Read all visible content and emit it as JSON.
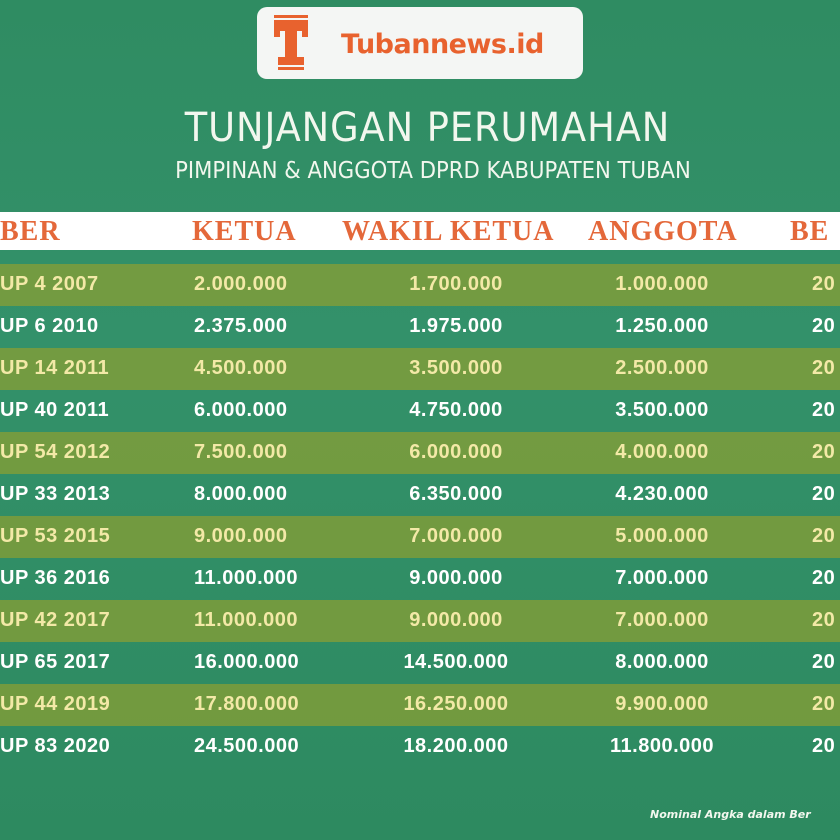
{
  "brand": {
    "name": "Tubannews.id",
    "color": "#e8622e"
  },
  "title": "TUNJANGAN PERUMAHAN",
  "subtitle": "PIMPINAN & ANGGOTA DPRD KABUPATEN TUBAN",
  "table": {
    "headers": [
      "BER",
      "KETUA",
      "WAKIL KETUA",
      "ANGGOTA",
      "BE"
    ],
    "rows": [
      [
        "UP 4 2007",
        "2.000.000",
        "1.700.000",
        "1.000.000",
        "20"
      ],
      [
        "UP 6 2010",
        "2.375.000",
        "1.975.000",
        "1.250.000",
        "20"
      ],
      [
        "UP 14 2011",
        "4.500.000",
        "3.500.000",
        "2.500.000",
        "20"
      ],
      [
        "UP 40 2011",
        "6.000.000",
        "4.750.000",
        "3.500.000",
        "20"
      ],
      [
        "UP 54 2012",
        "7.500.000",
        "6.000.000",
        "4.000.000",
        "20"
      ],
      [
        "UP 33 2013",
        "8.000.000",
        "6.350.000",
        "4.230.000",
        "20"
      ],
      [
        "UP 53 2015",
        "9.000.000",
        "7.000.000",
        "5.000.000",
        "20"
      ],
      [
        "UP 36 2016",
        "11.000.000",
        "9.000.000",
        "7.000.000",
        "20"
      ],
      [
        "UP 42 2017",
        "11.000.000",
        "9.000.000",
        "7.000.000",
        "20"
      ],
      [
        "UP 65 2017",
        "16.000.000",
        "14.500.000",
        "8.000.000",
        "20"
      ],
      [
        "UP 44 2019",
        "17.800.000",
        "16.250.000",
        "9.900.000",
        "20"
      ],
      [
        "UP 83 2020",
        "24.500.000",
        "18.200.000",
        "11.800.000",
        "20"
      ]
    ],
    "colors": {
      "olive_row": "#8ca032",
      "green_row": "#2f8c62",
      "header_text": "#e4683a",
      "olive_text": "#f3e9a7"
    }
  },
  "footnote": "Nominal Angka dalam Ber"
}
